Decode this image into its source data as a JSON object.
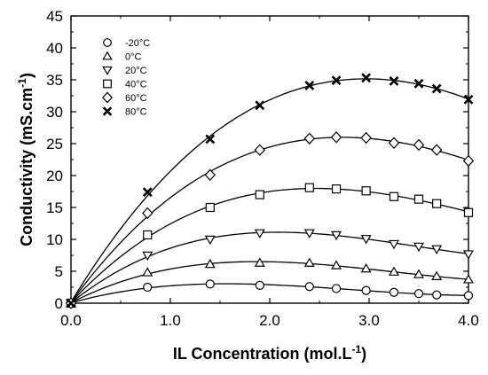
{
  "chart_data": {
    "type": "scatter",
    "xlabel": "IL Concentration (mol.L",
    "xlabel_sup": "-1",
    "xlabel_suffix": ")",
    "ylabel": "Conductivity (mS.cm",
    "ylabel_sup": "-1",
    "ylabel_suffix": ")",
    "xlim": [
      0,
      4
    ],
    "ylim": [
      0,
      45
    ],
    "x_ticks": [
      "0.0",
      "1.0",
      "2.0",
      "3.0",
      "4.0"
    ],
    "y_ticks": [
      "0",
      "5",
      "10",
      "15",
      "20",
      "25",
      "30",
      "35",
      "40",
      "45"
    ],
    "grid": false,
    "legend_position": "top-left",
    "fit_lines": true,
    "series": [
      {
        "name": "-20°C",
        "marker": "circle",
        "x": [
          0,
          0.77,
          1.4,
          1.9,
          2.4,
          2.67,
          2.97,
          3.25,
          3.5,
          3.68,
          4.0
        ],
        "y": [
          0,
          2.5,
          3.0,
          2.8,
          2.6,
          2.3,
          2.0,
          1.7,
          1.5,
          1.3,
          1.2
        ]
      },
      {
        "name": "0°C",
        "marker": "triangle-up",
        "x": [
          0,
          0.77,
          1.4,
          1.9,
          2.4,
          2.67,
          2.97,
          3.25,
          3.5,
          3.68,
          4.0
        ],
        "y": [
          0,
          4.8,
          6.1,
          6.3,
          6.3,
          5.9,
          5.4,
          4.9,
          4.5,
          4.2,
          3.7
        ]
      },
      {
        "name": "20°C",
        "marker": "triangle-down",
        "x": [
          0,
          0.77,
          1.4,
          1.9,
          2.4,
          2.67,
          2.97,
          3.25,
          3.5,
          3.68,
          4.0
        ],
        "y": [
          0,
          7.5,
          10.0,
          11.0,
          11.0,
          10.7,
          10.1,
          9.3,
          8.9,
          8.5,
          7.7
        ]
      },
      {
        "name": "40°C",
        "marker": "square",
        "x": [
          0,
          0.77,
          1.4,
          1.9,
          2.4,
          2.67,
          2.97,
          3.25,
          3.5,
          3.68,
          4.0
        ],
        "y": [
          0,
          10.7,
          15.0,
          17.0,
          18.1,
          17.9,
          17.6,
          16.7,
          16.3,
          15.6,
          14.2
        ]
      },
      {
        "name": "60°C",
        "marker": "diamond",
        "x": [
          0,
          0.77,
          1.4,
          1.9,
          2.4,
          2.67,
          2.97,
          3.25,
          3.5,
          3.68,
          4.0
        ],
        "y": [
          0,
          14.1,
          20.1,
          24.0,
          25.8,
          26.0,
          25.9,
          25.1,
          24.8,
          24.0,
          22.3
        ]
      },
      {
        "name": "80°C",
        "marker": "x",
        "x": [
          0,
          0.77,
          1.4,
          1.9,
          2.4,
          2.67,
          2.97,
          3.25,
          3.5,
          3.68,
          4.0
        ],
        "y": [
          0,
          17.4,
          25.7,
          31.0,
          34.1,
          34.9,
          35.3,
          34.8,
          34.4,
          33.6,
          31.9
        ]
      }
    ]
  }
}
